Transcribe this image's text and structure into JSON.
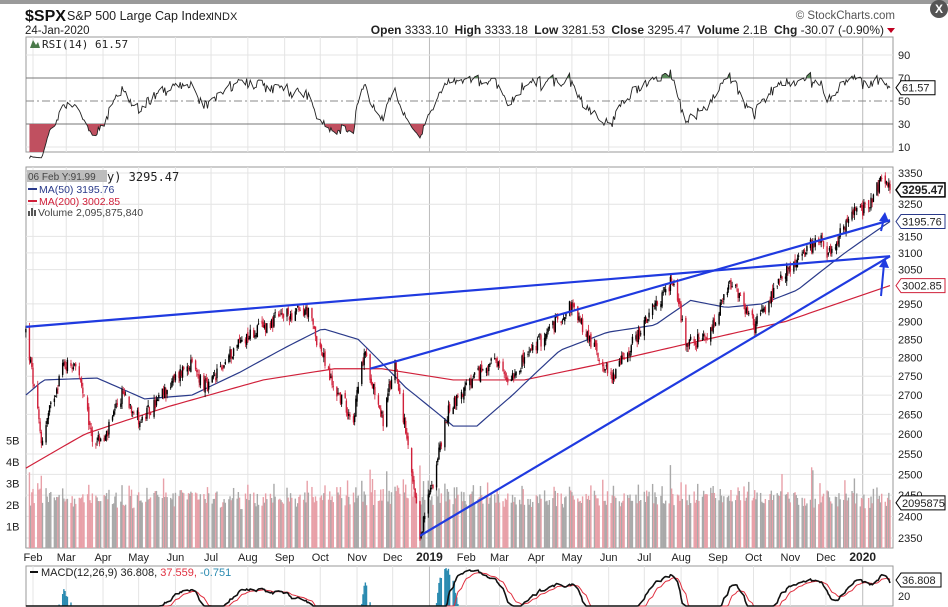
{
  "header": {
    "symbol": "$SPX",
    "name": "S&P 500 Large Cap Index",
    "exchange": "INDX",
    "date": "24-Jan-2020",
    "brand": "© StockCharts.com",
    "open_label": "Open",
    "open": "3333.10",
    "high_label": "High",
    "high": "3333.18",
    "low_label": "Low",
    "low": "3281.53",
    "close_label": "Close",
    "close": "3295.47",
    "volume_label": "Volume",
    "volume": "2.1B",
    "chg_label": "Chg",
    "chg": "-30.07 (-0.90%)",
    "close_button": "X"
  },
  "colors": {
    "up": "#000000",
    "down": "#d0203a",
    "ma50": "#2a3a8a",
    "ma200": "#d0203a",
    "trend": "#1f3ae0",
    "volUp": "#a9a9a9",
    "volDown": "#e8a0a8",
    "rsiFillHigh": "#5a8a5a",
    "rsiFillLow": "#c05060",
    "macdSignal": "#e03040",
    "macdHist": "#2a8ab0"
  },
  "rsi_panel": {
    "legend": "RSI(14) 61.57",
    "value_tag": "61.57",
    "ticks": [
      90,
      70,
      50,
      30,
      10
    ]
  },
  "price_panel": {
    "legend_tooltip": "06 Feb Y:91.99",
    "legend_price": "y) 3295.47",
    "legend_ma50": "MA(50) 3195.76",
    "legend_ma200": "MA(200) 3002.85",
    "legend_volume": "Volume 2,095,875,840",
    "tag_close": "3295.47",
    "tag_ma50": "3195.76",
    "tag_ma200": "3002.85",
    "tag_volume": "2095875",
    "price_ticks": [
      3350,
      3250,
      3150,
      3100,
      3050,
      2950,
      2900,
      2850,
      2800,
      2750,
      2700,
      2650,
      2600,
      2550,
      2500,
      2450,
      2400,
      2350
    ],
    "volume_ticks": [
      "1B",
      "2B",
      "3B",
      "4B",
      "5B"
    ]
  },
  "x_axis": {
    "labels": [
      {
        "text": "Feb",
        "day": 6,
        "bold": false
      },
      {
        "text": "Mar",
        "day": 34,
        "bold": false
      },
      {
        "text": "Apr",
        "day": 65,
        "bold": false
      },
      {
        "text": "May",
        "day": 95,
        "bold": false
      },
      {
        "text": "Jun",
        "day": 126,
        "bold": false
      },
      {
        "text": "Jul",
        "day": 156,
        "bold": false
      },
      {
        "text": "Aug",
        "day": 187,
        "bold": false
      },
      {
        "text": "Sep",
        "day": 218,
        "bold": false
      },
      {
        "text": "Oct",
        "day": 248,
        "bold": false
      },
      {
        "text": "Nov",
        "day": 279,
        "bold": false
      },
      {
        "text": "Dec",
        "day": 309,
        "bold": false
      },
      {
        "text": "2019",
        "day": 340,
        "bold": true
      },
      {
        "text": "Feb",
        "day": 371,
        "bold": false
      },
      {
        "text": "Mar",
        "day": 399,
        "bold": false
      },
      {
        "text": "Apr",
        "day": 430,
        "bold": false
      },
      {
        "text": "May",
        "day": 460,
        "bold": false
      },
      {
        "text": "Jun",
        "day": 491,
        "bold": false
      },
      {
        "text": "Jul",
        "day": 521,
        "bold": false
      },
      {
        "text": "Aug",
        "day": 552,
        "bold": false
      },
      {
        "text": "Sep",
        "day": 583,
        "bold": false
      },
      {
        "text": "Oct",
        "day": 613,
        "bold": false
      },
      {
        "text": "Nov",
        "day": 644,
        "bold": false
      },
      {
        "text": "Dec",
        "day": 674,
        "bold": false
      },
      {
        "text": "2020",
        "day": 705,
        "bold": true
      }
    ]
  },
  "macd_panel": {
    "legend_name": "MACD(12,26,9) 36.808,",
    "legend_signal": "37.559,",
    "legend_hist": "-0.751",
    "value_tag": "36.808",
    "ticks": [
      20
    ]
  },
  "chart_data": {
    "type": "candlestick",
    "title": "$SPX S&P 500 Large Cap Index",
    "x_unit": "calendar days since 26-Jan-2018",
    "y_scale": "log",
    "ylim": [
      2350,
      3350
    ],
    "price_keypoints": [
      [
        0,
        2873
      ],
      [
        13,
        2581
      ],
      [
        31,
        2780
      ],
      [
        42,
        2786
      ],
      [
        56,
        2588
      ],
      [
        66,
        2582
      ],
      [
        82,
        2708
      ],
      [
        97,
        2630
      ],
      [
        137,
        2787
      ],
      [
        153,
        2716
      ],
      [
        180,
        2846
      ],
      [
        215,
        2914
      ],
      [
        237,
        2931
      ],
      [
        258,
        2728
      ],
      [
        276,
        2641
      ],
      [
        285,
        2814
      ],
      [
        301,
        2633
      ],
      [
        311,
        2790
      ],
      [
        332,
        2351
      ],
      [
        357,
        2670
      ],
      [
        392,
        2792
      ],
      [
        406,
        2743
      ],
      [
        459,
        2945
      ],
      [
        493,
        2744
      ],
      [
        546,
        3025
      ],
      [
        556,
        2844
      ],
      [
        574,
        2847
      ],
      [
        594,
        3009
      ],
      [
        614,
        2887
      ],
      [
        640,
        3039
      ],
      [
        670,
        3153
      ],
      [
        676,
        3093
      ],
      [
        700,
        3240
      ],
      [
        707,
        3235
      ],
      [
        721,
        3330
      ],
      [
        728,
        3295
      ]
    ],
    "ma50_keypoints": [
      [
        0,
        2700
      ],
      [
        15,
        2740
      ],
      [
        60,
        2745
      ],
      [
        100,
        2690
      ],
      [
        140,
        2700
      ],
      [
        180,
        2760
      ],
      [
        220,
        2830
      ],
      [
        250,
        2880
      ],
      [
        280,
        2850
      ],
      [
        320,
        2720
      ],
      [
        360,
        2620
      ],
      [
        380,
        2620
      ],
      [
        410,
        2700
      ],
      [
        450,
        2820
      ],
      [
        490,
        2870
      ],
      [
        530,
        2890
      ],
      [
        560,
        2960
      ],
      [
        590,
        2940
      ],
      [
        620,
        2950
      ],
      [
        650,
        2990
      ],
      [
        690,
        3100
      ],
      [
        728,
        3196
      ]
    ],
    "ma200_keypoints": [
      [
        0,
        2515
      ],
      [
        50,
        2600
      ],
      [
        120,
        2670
      ],
      [
        200,
        2740
      ],
      [
        260,
        2770
      ],
      [
        300,
        2770
      ],
      [
        360,
        2740
      ],
      [
        420,
        2740
      ],
      [
        480,
        2780
      ],
      [
        560,
        2840
      ],
      [
        640,
        2900
      ],
      [
        728,
        3003
      ]
    ],
    "volume_typical_billions": 2.2,
    "trendlines": [
      {
        "name": "upper-resistance",
        "from": [
          0,
          2885
        ],
        "to": [
          728,
          3090
        ]
      },
      {
        "name": "mid-resistance",
        "from": [
          290,
          2770
        ],
        "to": [
          728,
          3200
        ]
      },
      {
        "name": "lower-support",
        "from": [
          332,
          2355
        ],
        "to": [
          728,
          3090
        ]
      }
    ]
  }
}
